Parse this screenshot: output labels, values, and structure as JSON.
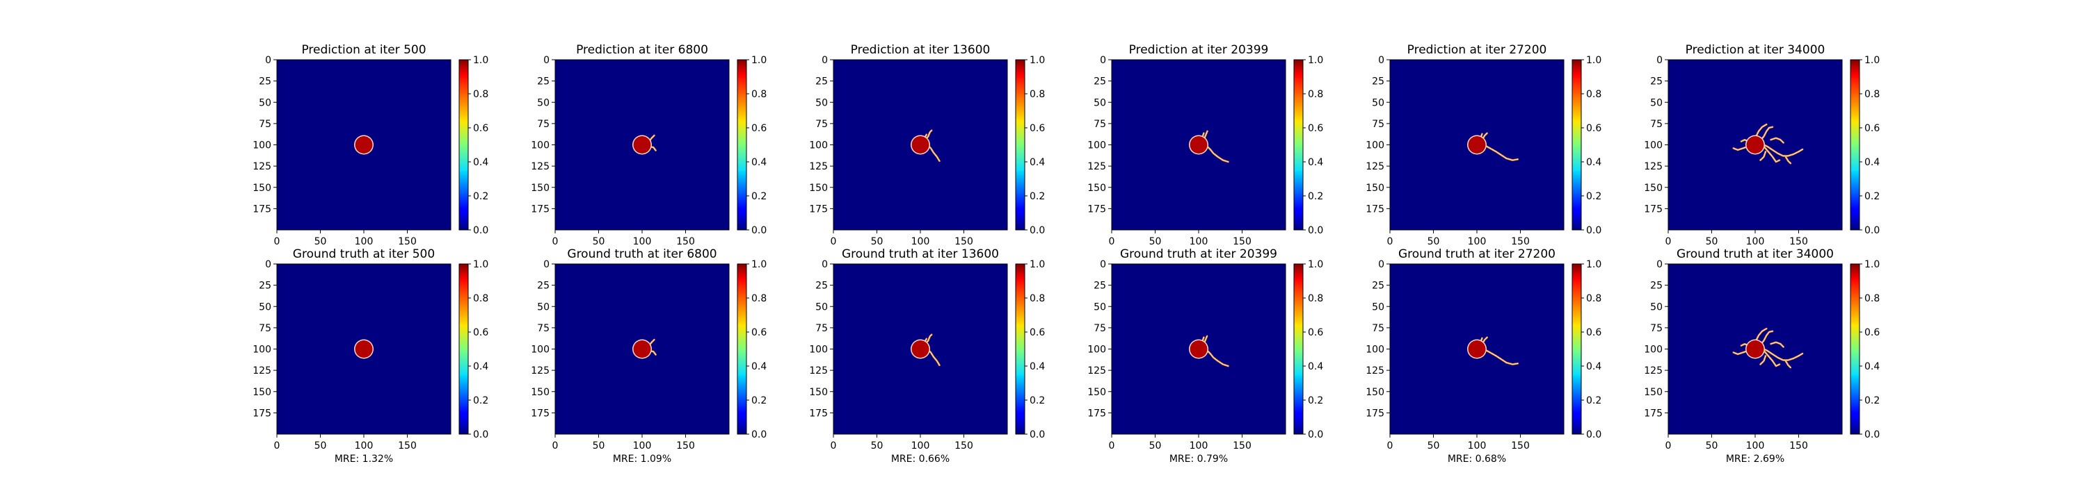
{
  "chart_data": {
    "type": "heatmap",
    "colormap": "jet",
    "colorbar": {
      "range": [
        0,
        1
      ],
      "ticks": [
        "0.0",
        "0.2",
        "0.4",
        "0.6",
        "0.8",
        "1.0"
      ]
    },
    "axes": {
      "x_range": [
        0,
        200
      ],
      "y_range": [
        0,
        200
      ],
      "y_inverted": true,
      "x_ticks": [
        0,
        50,
        100,
        150
      ],
      "y_ticks": [
        0,
        25,
        50,
        75,
        100,
        125,
        150,
        175
      ]
    },
    "background_value": 0.0,
    "seed": {
      "center": [
        100,
        100
      ],
      "radius": 10,
      "value": 0.95
    },
    "panels": [
      {
        "iter": "500",
        "prediction_title": "Prediction at iter 500",
        "truth_title": "Ground truth at iter 500",
        "mre": "MRE: 1.32%",
        "branches": []
      },
      {
        "iter": "6800",
        "prediction_title": "Prediction at iter 6800",
        "truth_title": "Ground truth at iter 6800",
        "mre": "MRE: 1.09%",
        "branches": [
          [
            [
              108,
              96
            ],
            [
              111,
              92
            ],
            [
              114,
              89
            ]
          ],
          [
            [
              108,
              102
            ],
            [
              113,
              103
            ],
            [
              116,
              107
            ]
          ]
        ]
      },
      {
        "iter": "13600",
        "prediction_title": "Prediction at iter 13600",
        "truth_title": "Ground truth at iter 13600",
        "mre": "MRE: 0.66%",
        "branches": [
          [
            [
              106,
              94
            ],
            [
              109,
              90
            ],
            [
              111,
              85
            ],
            [
              113,
              83
            ]
          ],
          [
            [
              108,
              100
            ],
            [
              112,
              104
            ],
            [
              115,
              109
            ],
            [
              119,
              114
            ],
            [
              122,
              119
            ]
          ],
          [
            [
              104,
              93
            ],
            [
              107,
              88
            ]
          ]
        ]
      },
      {
        "iter": "20399",
        "prediction_title": "Prediction at iter 20399",
        "truth_title": "Ground truth at iter 20399",
        "mre": "MRE: 0.79%",
        "branches": [
          [
            [
              106,
              94
            ],
            [
              108,
              89
            ],
            [
              110,
              84
            ]
          ],
          [
            [
              108,
              100
            ],
            [
              113,
              105
            ],
            [
              117,
              110
            ],
            [
              122,
              114
            ],
            [
              128,
              118
            ],
            [
              134,
              120
            ]
          ],
          [
            [
              104,
              92
            ],
            [
              106,
              86
            ]
          ]
        ]
      },
      {
        "iter": "27200",
        "prediction_title": "Prediction at iter 27200",
        "truth_title": "Ground truth at iter 27200",
        "mre": "MRE: 0.68%",
        "branches": [
          [
            [
              106,
              94
            ],
            [
              109,
              89
            ],
            [
              112,
              86
            ]
          ],
          [
            [
              108,
              100
            ],
            [
              115,
              104
            ],
            [
              122,
              108
            ],
            [
              128,
              112
            ],
            [
              134,
              116
            ],
            [
              141,
              118
            ],
            [
              147,
              117
            ]
          ],
          [
            [
              104,
              93
            ],
            [
              106,
              87
            ]
          ]
        ]
      },
      {
        "iter": "34000",
        "prediction_title": "Prediction at iter 34000",
        "truth_title": "Ground truth at iter 34000",
        "mre": "MRE: 2.69%",
        "branches": [
          [
            [
              106,
              95
            ],
            [
              110,
              90
            ],
            [
              113,
              84
            ],
            [
              116,
              80
            ],
            [
              120,
              79
            ]
          ],
          [
            [
              108,
              99
            ],
            [
              114,
              102
            ],
            [
              120,
              106
            ],
            [
              126,
              110
            ],
            [
              132,
              113
            ],
            [
              138,
              113
            ],
            [
              144,
              111
            ],
            [
              150,
              108
            ],
            [
              155,
              105
            ]
          ],
          [
            [
              110,
              102
            ],
            [
              115,
              108
            ],
            [
              120,
              114
            ],
            [
              124,
              120
            ],
            [
              128,
              118
            ]
          ],
          [
            [
              92,
              102
            ],
            [
              86,
              104
            ],
            [
              80,
              106
            ],
            [
              75,
              104
            ]
          ],
          [
            [
              101,
              90
            ],
            [
              104,
              84
            ],
            [
              108,
              79
            ],
            [
              113,
              76
            ]
          ],
          [
            [
              118,
              94
            ],
            [
              124,
              92
            ],
            [
              129,
              94
            ],
            [
              133,
              98
            ]
          ],
          [
            [
              94,
              97
            ],
            [
              88,
              94
            ],
            [
              84,
              96
            ]
          ],
          [
            [
              112,
              108
            ],
            [
              110,
              114
            ],
            [
              106,
              118
            ]
          ],
          [
            [
              135,
              114
            ],
            [
              138,
              119
            ],
            [
              141,
              122
            ]
          ]
        ]
      }
    ]
  }
}
